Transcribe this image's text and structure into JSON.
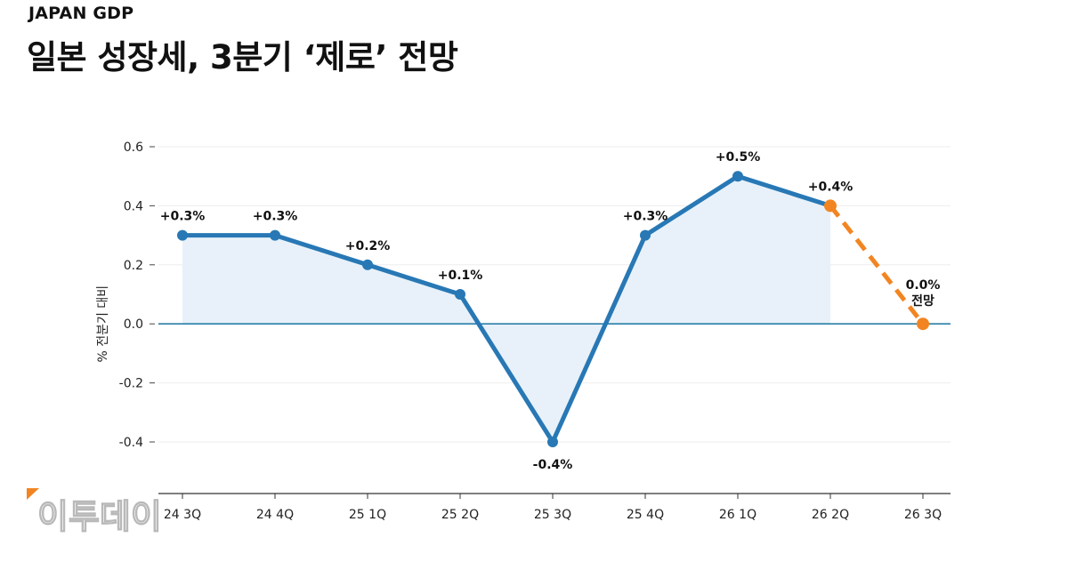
{
  "header": {
    "kicker": "JAPAN GDP",
    "title": "일본 성장세, 3분기 ‘제로’ 전망"
  },
  "chart_data": {
    "type": "line",
    "categories": [
      "24 3Q",
      "24 4Q",
      "25 1Q",
      "25 2Q",
      "25 3Q",
      "25 4Q",
      "26 1Q",
      "26 2Q",
      "26 3Q"
    ],
    "values": [
      0.3,
      0.3,
      0.2,
      0.1,
      -0.4,
      0.3,
      0.5,
      0.4,
      0.0
    ],
    "data_labels": [
      "+0.3%",
      "+0.3%",
      "+0.2%",
      "+0.1%",
      "-0.4%",
      "+0.3%",
      "+0.5%",
      "+0.4%",
      "0.0%"
    ],
    "forecast_start_index": 7,
    "forecast_note": "전망",
    "ylabel": "% 전분기 대비",
    "ylim": [
      -0.6,
      0.6
    ],
    "yticks": [
      0.6,
      0.4,
      0.2,
      0.0,
      -0.2,
      -0.4
    ],
    "ytick_labels": [
      "0.6",
      "0.4",
      "0.2",
      "0.0",
      "-0.2",
      "-0.4"
    ],
    "grid": true,
    "colors": {
      "actual": "#2878b5",
      "forecast": "#f28522",
      "area": "#e8f1f9",
      "baseline": "#2a7fa8",
      "grid": "#eeeeee"
    }
  },
  "watermark": {
    "text": "이투데이",
    "accent": "#f28522"
  }
}
